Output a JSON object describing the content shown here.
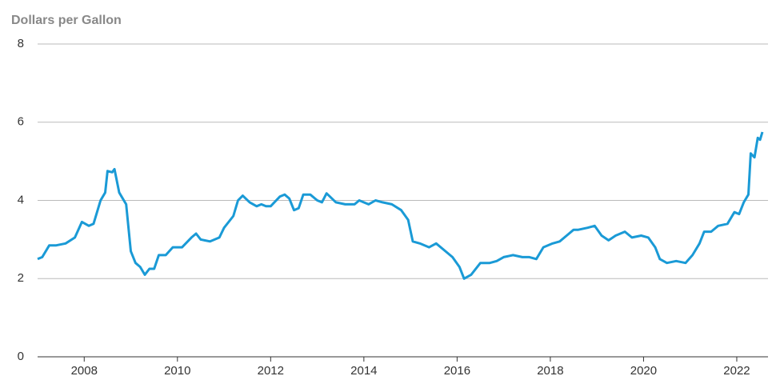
{
  "chart_data": {
    "type": "line",
    "ylabel": "Dollars per Gallon",
    "x": [
      2007.0,
      2007.1,
      2007.25,
      2007.4,
      2007.6,
      2007.8,
      2007.95,
      2008.1,
      2008.2,
      2008.35,
      2008.45,
      2008.5,
      2008.6,
      2008.65,
      2008.75,
      2008.9,
      2009.0,
      2009.1,
      2009.2,
      2009.3,
      2009.4,
      2009.5,
      2009.6,
      2009.75,
      2009.9,
      2010.1,
      2010.3,
      2010.4,
      2010.5,
      2010.7,
      2010.9,
      2011.0,
      2011.2,
      2011.3,
      2011.4,
      2011.55,
      2011.7,
      2011.8,
      2011.9,
      2012.0,
      2012.2,
      2012.3,
      2012.4,
      2012.5,
      2012.6,
      2012.7,
      2012.85,
      2013.0,
      2013.1,
      2013.2,
      2013.4,
      2013.6,
      2013.8,
      2013.9,
      2014.1,
      2014.25,
      2014.4,
      2014.6,
      2014.8,
      2014.95,
      2015.05,
      2015.2,
      2015.4,
      2015.55,
      2015.75,
      2015.9,
      2016.05,
      2016.15,
      2016.3,
      2016.5,
      2016.7,
      2016.85,
      2017.0,
      2017.2,
      2017.4,
      2017.55,
      2017.7,
      2017.85,
      2018.05,
      2018.2,
      2018.35,
      2018.5,
      2018.6,
      2018.8,
      2018.95,
      2019.1,
      2019.25,
      2019.4,
      2019.6,
      2019.75,
      2019.95,
      2020.1,
      2020.25,
      2020.35,
      2020.5,
      2020.7,
      2020.9,
      2021.05,
      2021.2,
      2021.3,
      2021.45,
      2021.6,
      2021.8,
      2021.95,
      2022.05,
      2022.15,
      2022.25,
      2022.3,
      2022.38,
      2022.45,
      2022.5,
      2022.55
    ],
    "series": [
      {
        "color": "#1a9ad6",
        "values": [
          2.5,
          2.55,
          2.85,
          2.85,
          2.9,
          3.05,
          3.45,
          3.35,
          3.4,
          4.0,
          4.2,
          4.75,
          4.72,
          4.8,
          4.2,
          3.9,
          2.7,
          2.4,
          2.3,
          2.1,
          2.25,
          2.25,
          2.6,
          2.6,
          2.8,
          2.8,
          3.05,
          3.15,
          3.0,
          2.95,
          3.05,
          3.3,
          3.6,
          4.0,
          4.12,
          3.95,
          3.85,
          3.9,
          3.85,
          3.85,
          4.1,
          4.15,
          4.05,
          3.75,
          3.8,
          4.15,
          4.15,
          4.0,
          3.95,
          4.18,
          3.95,
          3.9,
          3.9,
          4.0,
          3.9,
          4.0,
          3.95,
          3.9,
          3.75,
          3.5,
          2.95,
          2.9,
          2.8,
          2.9,
          2.7,
          2.55,
          2.3,
          2.0,
          2.1,
          2.4,
          2.4,
          2.45,
          2.55,
          2.6,
          2.55,
          2.55,
          2.5,
          2.8,
          2.9,
          2.95,
          3.1,
          3.25,
          3.25,
          3.3,
          3.35,
          3.1,
          2.98,
          3.1,
          3.2,
          3.05,
          3.1,
          3.05,
          2.8,
          2.5,
          2.4,
          2.45,
          2.4,
          2.6,
          2.9,
          3.2,
          3.2,
          3.35,
          3.4,
          3.7,
          3.65,
          3.95,
          4.15,
          5.2,
          5.1,
          5.6,
          5.55,
          5.75
        ]
      }
    ],
    "xlim": [
      2007.0,
      2022.67
    ],
    "xticks": [
      2008,
      2010,
      2012,
      2014,
      2016,
      2018,
      2020,
      2022
    ],
    "ylim": [
      0,
      8
    ],
    "yticks": [
      0,
      2,
      4,
      6,
      8
    ],
    "grid": true
  }
}
